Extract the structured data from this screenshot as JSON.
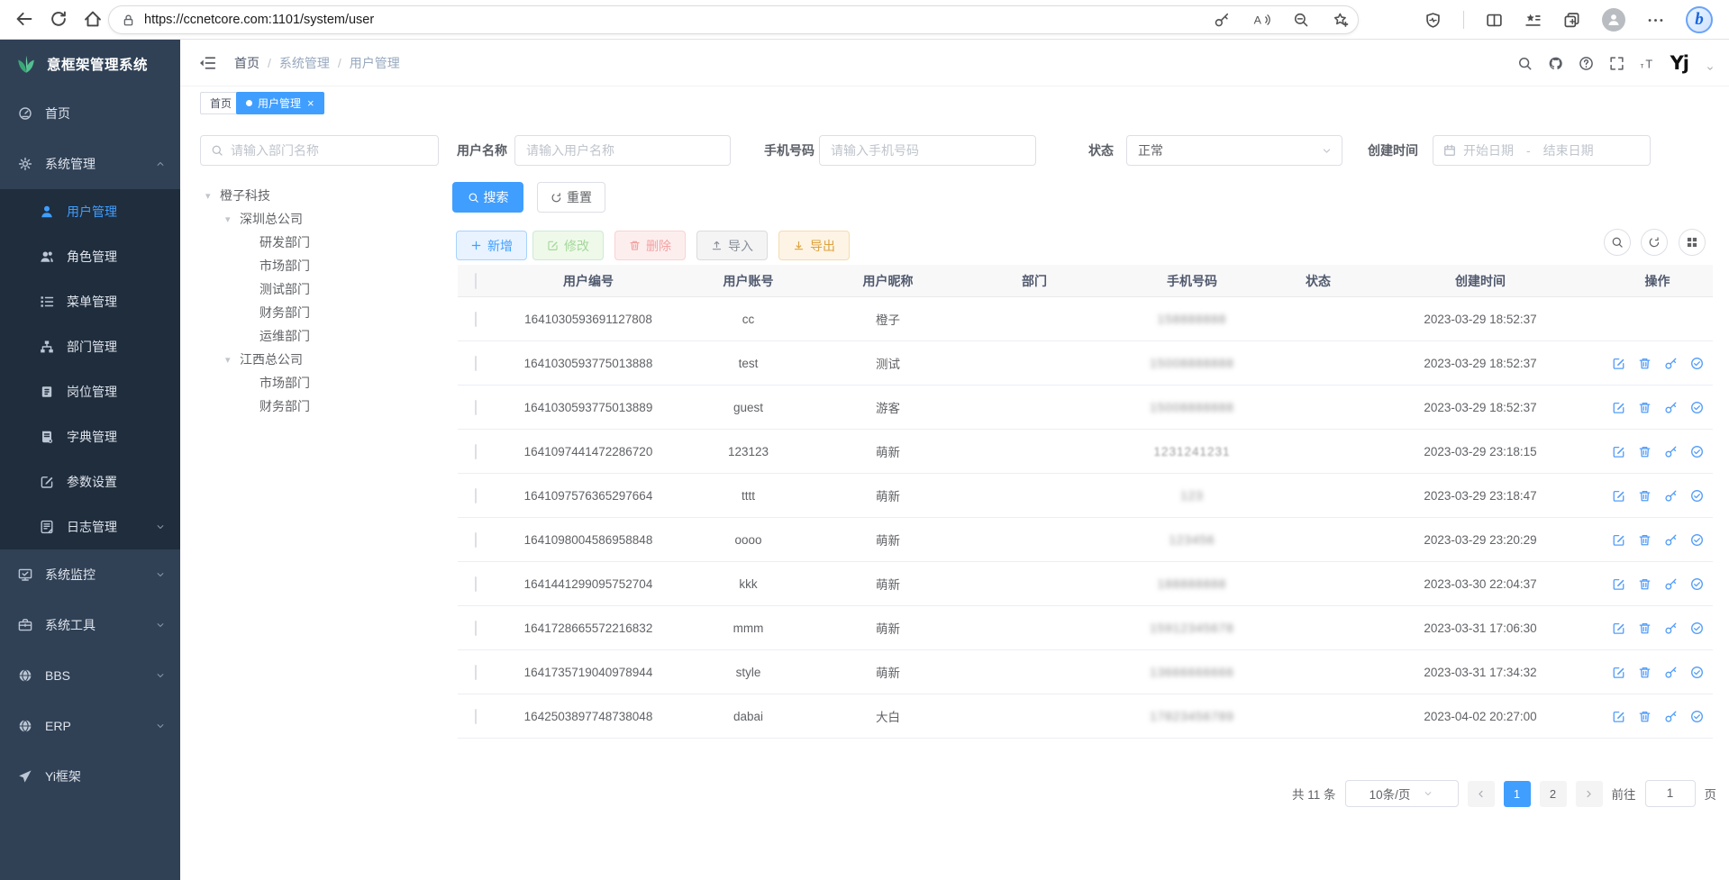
{
  "browser": {
    "url": "https://ccnetcore.com:1101/system/user",
    "nav_icons": [
      "back-icon",
      "reload-icon",
      "home-icon"
    ],
    "address_icons": [
      "key-icon",
      "read-aloud-icon",
      "zoom-out-icon",
      "star-plus-icon"
    ],
    "right_icons": [
      "essentials-icon",
      "split-screen-icon",
      "favorites-bar-icon",
      "collections-icon",
      "profile-avatar-icon",
      "more-icon",
      "bing-chat-icon"
    ],
    "bing_letter": "b"
  },
  "logo": {
    "title": "意框架管理系统",
    "icon": "leaf-icon"
  },
  "breadcrumb": {
    "items": [
      "首页",
      "系统管理",
      "用户管理"
    ],
    "separator": "/"
  },
  "tabs": [
    {
      "label": "首页",
      "active": false,
      "closable": false
    },
    {
      "label": "用户管理",
      "active": true,
      "closable": true,
      "close_glyph": "×"
    }
  ],
  "header_tools": [
    "search-icon",
    "github-icon",
    "help-icon",
    "fullscreen-icon",
    "font-size-icon"
  ],
  "user_logo_text": "Yj",
  "sidebar": {
    "items": [
      {
        "icon": "dashboard-icon",
        "label": "首页"
      },
      {
        "icon": "gear-icon",
        "label": "系统管理",
        "expanded": true,
        "arrow": "up",
        "children": [
          {
            "icon": "user-icon",
            "label": "用户管理",
            "active": true
          },
          {
            "icon": "users-icon",
            "label": "角色管理"
          },
          {
            "icon": "menu-list-icon",
            "label": "菜单管理"
          },
          {
            "icon": "dept-tree-icon",
            "label": "部门管理"
          },
          {
            "icon": "post-badge-icon",
            "label": "岗位管理"
          },
          {
            "icon": "dict-book-icon",
            "label": "字典管理"
          },
          {
            "icon": "edit-square-icon",
            "label": "参数设置"
          },
          {
            "icon": "log-doc-icon",
            "label": "日志管理",
            "arrow": "down"
          }
        ]
      },
      {
        "icon": "monitor-icon",
        "label": "系统监控",
        "arrow": "down"
      },
      {
        "icon": "toolbox-icon",
        "label": "系统工具",
        "arrow": "down"
      },
      {
        "icon": "globe-icon",
        "label": "BBS",
        "arrow": "down"
      },
      {
        "icon": "globe-icon",
        "label": "ERP",
        "arrow": "down"
      },
      {
        "icon": "plane-icon",
        "label": "Yi框架"
      }
    ]
  },
  "filters": {
    "dept_search_placeholder": "请输入部门名称",
    "username_label": "用户名称",
    "username_placeholder": "请输入用户名称",
    "phone_label": "手机号码",
    "phone_placeholder": "请输入手机号码",
    "status_label": "状态",
    "status_value": "正常",
    "created_label": "创建时间",
    "date_start_placeholder": "开始日期",
    "date_separator": "-",
    "date_end_placeholder": "结束日期",
    "search_button": "搜索",
    "reset_button": "重置"
  },
  "tree": [
    {
      "label": "橙子科技",
      "depth": 0,
      "expandable": true
    },
    {
      "label": "深圳总公司",
      "depth": 1,
      "expandable": true
    },
    {
      "label": "研发部门",
      "depth": 2,
      "expandable": false
    },
    {
      "label": "市场部门",
      "depth": 2,
      "expandable": false
    },
    {
      "label": "测试部门",
      "depth": 2,
      "expandable": false
    },
    {
      "label": "财务部门",
      "depth": 2,
      "expandable": false
    },
    {
      "label": "运维部门",
      "depth": 2,
      "expandable": false
    },
    {
      "label": "江西总公司",
      "depth": 1,
      "expandable": true
    },
    {
      "label": "市场部门",
      "depth": 2,
      "expandable": false
    },
    {
      "label": "财务部门",
      "depth": 2,
      "expandable": false
    }
  ],
  "toolbar": {
    "add": "新增",
    "edit": "修改",
    "delete": "删除",
    "import": "导入",
    "export": "导出"
  },
  "table_tools": [
    "search-icon",
    "refresh-icon",
    "grid-icon"
  ],
  "table": {
    "columns": [
      "",
      "用户编号",
      "用户账号",
      "用户昵称",
      "部门",
      "手机号码",
      "状态",
      "创建时间",
      "操作"
    ],
    "action_icons": [
      "edit-square-icon",
      "trash-icon",
      "key-icon",
      "check-circle-icon"
    ],
    "rows": [
      {
        "id": "1641030593691127808",
        "account": "cc",
        "nickname": "橙子",
        "dept": "",
        "phone_masked": "158888888",
        "phone_blur": "heavy",
        "status_on": true,
        "created": "2023-03-29 18:52:37",
        "has_actions": false
      },
      {
        "id": "1641030593775013888",
        "account": "test",
        "nickname": "测试",
        "dept": "",
        "phone_masked": "15008888888",
        "phone_blur": "heavy",
        "status_on": true,
        "created": "2023-03-29 18:52:37",
        "has_actions": true
      },
      {
        "id": "1641030593775013889",
        "account": "guest",
        "nickname": "游客",
        "dept": "",
        "phone_masked": "15008888888",
        "phone_blur": "heavy",
        "status_on": true,
        "created": "2023-03-29 18:52:37",
        "has_actions": true
      },
      {
        "id": "1641097441472286720",
        "account": "123123",
        "nickname": "萌新",
        "dept": "",
        "phone_masked": "1231241231",
        "phone_blur": "light",
        "status_on": true,
        "created": "2023-03-29 23:18:15",
        "has_actions": true
      },
      {
        "id": "1641097576365297664",
        "account": "tttt",
        "nickname": "萌新",
        "dept": "",
        "phone_masked": "123",
        "phone_blur": "heavy",
        "status_on": true,
        "created": "2023-03-29 23:18:47",
        "has_actions": true
      },
      {
        "id": "1641098004586958848",
        "account": "oooo",
        "nickname": "萌新",
        "dept": "",
        "phone_masked": "123456",
        "phone_blur": "heavy",
        "status_on": true,
        "created": "2023-03-29 23:20:29",
        "has_actions": true
      },
      {
        "id": "1641441299095752704",
        "account": "kkk",
        "nickname": "萌新",
        "dept": "",
        "phone_masked": "188888888",
        "phone_blur": "heavy",
        "status_on": true,
        "created": "2023-03-30 22:04:37",
        "has_actions": true
      },
      {
        "id": "1641728665572216832",
        "account": "mmm",
        "nickname": "萌新",
        "dept": "",
        "phone_masked": "15912345678",
        "phone_blur": "heavy",
        "status_on": true,
        "created": "2023-03-31 17:06:30",
        "has_actions": true
      },
      {
        "id": "1641735719040978944",
        "account": "style",
        "nickname": "萌新",
        "dept": "",
        "phone_masked": "13666666666",
        "phone_blur": "heavy",
        "status_on": true,
        "created": "2023-03-31 17:34:32",
        "has_actions": true
      },
      {
        "id": "1642503897748738048",
        "account": "dabai",
        "nickname": "大白",
        "dept": "",
        "phone_masked": "17823456789",
        "phone_blur": "heavy",
        "status_on": true,
        "created": "2023-04-02 20:27:00",
        "has_actions": true
      }
    ]
  },
  "pagination": {
    "total_text": "共 11 条",
    "page_size": "10条/页",
    "pages": [
      "1",
      "2"
    ],
    "current_page": "1",
    "goto_label": "前往",
    "goto_value": "1",
    "page_unit": "页"
  },
  "colors": {
    "primary": "#409eff",
    "sidebar_bg": "#304156",
    "submenu_bg": "#1f2d3d",
    "toggle_on": "#409eff"
  }
}
